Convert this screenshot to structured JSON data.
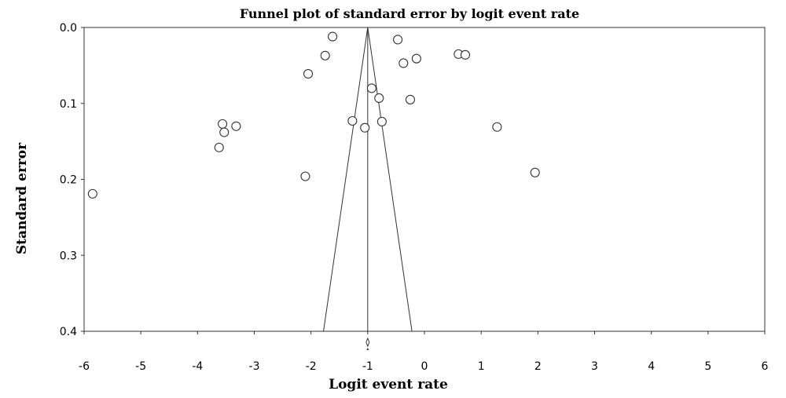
{
  "chart_data": {
    "type": "scatter",
    "title": "Funnel plot of standard error by logit event rate",
    "xlabel": "Logit event rate",
    "ylabel": "Standard error",
    "xlim": [
      -6,
      6
    ],
    "ylim": [
      0.0,
      0.4
    ],
    "y_inverted": true,
    "xticks": [
      "-6",
      "-5",
      "-4",
      "-3",
      "-2",
      "-1",
      "0",
      "1",
      "2",
      "3",
      "4",
      "5",
      "6"
    ],
    "yticks": [
      "0.0",
      "0.1",
      "0.2",
      "0.3",
      "0.4"
    ],
    "grid": false,
    "summary_estimate": -1.0,
    "funnel_base": [
      -1.78,
      -0.22
    ],
    "points": [
      {
        "x": -5.85,
        "y": 0.219
      },
      {
        "x": -3.62,
        "y": 0.158
      },
      {
        "x": -3.56,
        "y": 0.127
      },
      {
        "x": -3.53,
        "y": 0.138
      },
      {
        "x": -3.32,
        "y": 0.13
      },
      {
        "x": -2.1,
        "y": 0.196
      },
      {
        "x": -2.05,
        "y": 0.061
      },
      {
        "x": -1.75,
        "y": 0.037
      },
      {
        "x": -1.62,
        "y": 0.012
      },
      {
        "x": -1.27,
        "y": 0.123
      },
      {
        "x": -1.05,
        "y": 0.132
      },
      {
        "x": -0.93,
        "y": 0.08
      },
      {
        "x": -0.8,
        "y": 0.093
      },
      {
        "x": -0.75,
        "y": 0.124
      },
      {
        "x": -0.47,
        "y": 0.016
      },
      {
        "x": -0.37,
        "y": 0.047
      },
      {
        "x": -0.25,
        "y": 0.095
      },
      {
        "x": -0.14,
        "y": 0.041
      },
      {
        "x": 0.6,
        "y": 0.035
      },
      {
        "x": 0.72,
        "y": 0.036
      },
      {
        "x": 1.28,
        "y": 0.131
      },
      {
        "x": 1.95,
        "y": 0.191
      }
    ]
  }
}
